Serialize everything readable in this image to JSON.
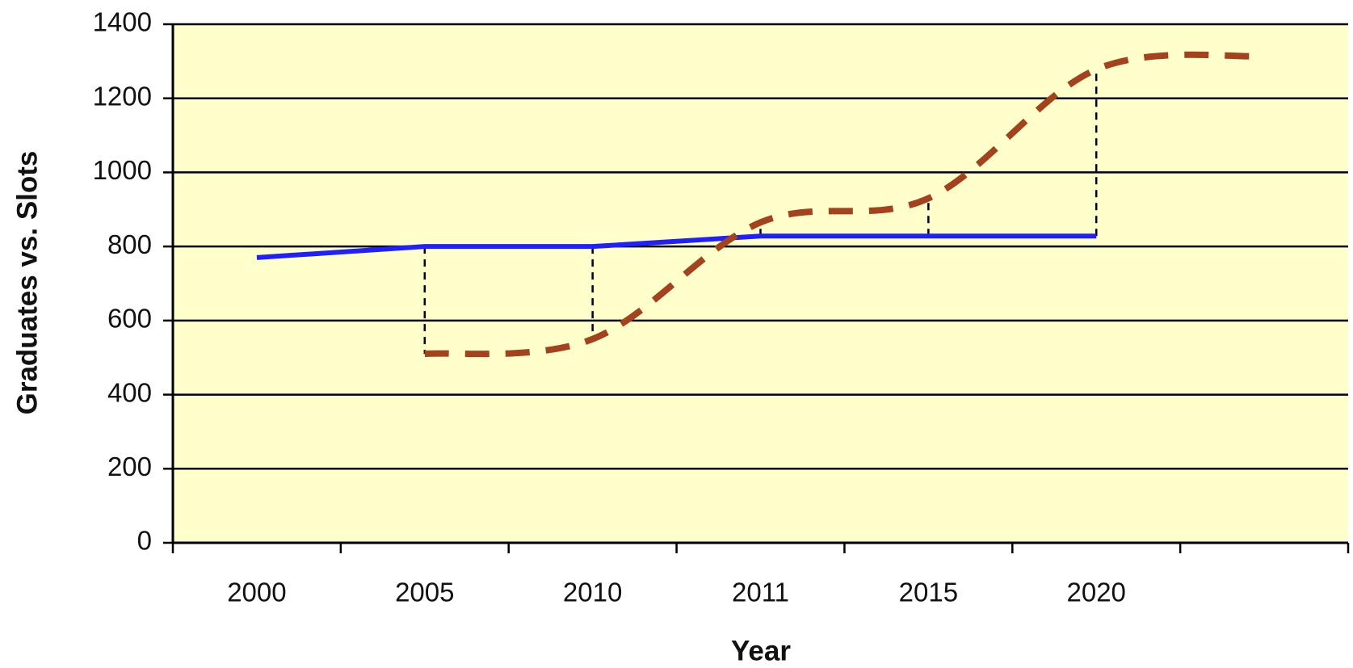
{
  "chart_data": {
    "type": "line",
    "x_label": "Year",
    "y_label": "Graduates vs. Slots",
    "categories": [
      "2000",
      "2005",
      "2010",
      "2011",
      "2015",
      "2020",
      null
    ],
    "series": [
      {
        "color": "#1f1fff",
        "line_style": "solid",
        "smooth": false,
        "values": [
          770,
          800,
          800,
          828,
          828,
          828,
          null
        ]
      },
      {
        "color": "#a3421c",
        "line_style": "dashed",
        "smooth": true,
        "values": [
          null,
          510,
          550,
          865,
          930,
          1278,
          1314
        ]
      }
    ],
    "difference_lines": true,
    "ylim": [
      0,
      1400
    ],
    "yticks": [
      0,
      200,
      400,
      600,
      800,
      1000,
      1200,
      1400
    ],
    "grid": true,
    "plot_background": "#ffffcc"
  }
}
